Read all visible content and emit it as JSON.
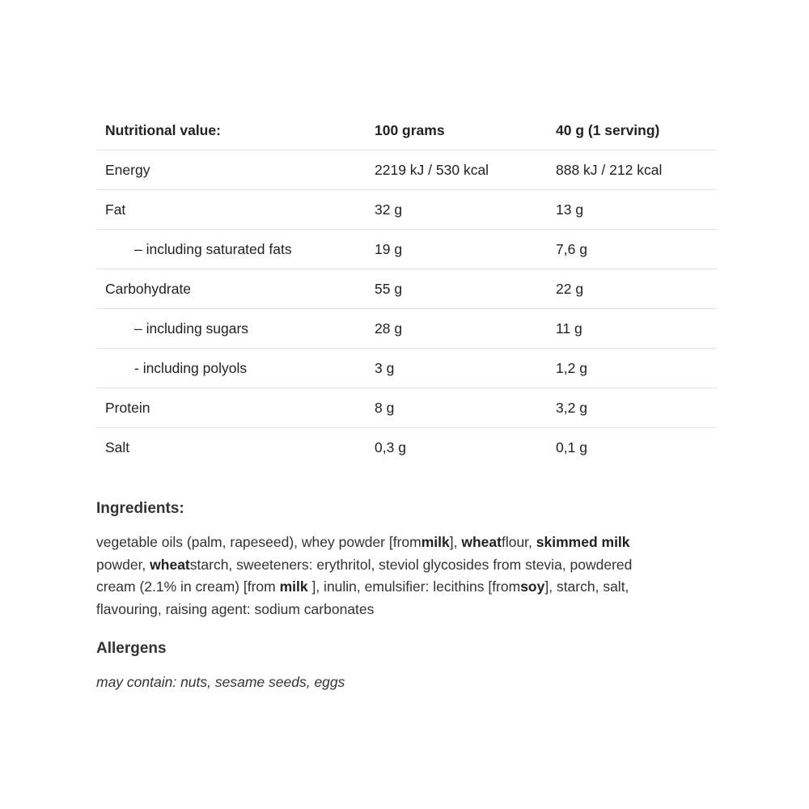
{
  "nutrition": {
    "headers": [
      "Nutritional value:",
      "100 grams",
      "40 g (1 serving)"
    ],
    "rows": [
      {
        "label": "Energy",
        "per100": "2219 kJ / 530 kcal",
        "serving": "888 kJ / 212 kcal",
        "indent": false
      },
      {
        "label": "Fat",
        "per100": "32 g",
        "serving": "13 g",
        "indent": false
      },
      {
        "label": "– including saturated fats",
        "per100": "19 g",
        "serving": "7,6 g",
        "indent": true
      },
      {
        "label": "Carbohydrate",
        "per100": "55 g",
        "serving": "22 g",
        "indent": false
      },
      {
        "label": "– including sugars",
        "per100": "28 g",
        "serving": "11 g",
        "indent": true
      },
      {
        "label": "- including polyols",
        "per100": "3 g",
        "serving": "1,2 g",
        "indent": true
      },
      {
        "label": "Protein",
        "per100": "8 g",
        "serving": "3,2 g",
        "indent": false
      },
      {
        "label": "Salt",
        "per100": "0,3 g",
        "serving": "0,1 g",
        "indent": false
      }
    ]
  },
  "ingredients": {
    "title": "Ingredients:",
    "lines": [
      [
        {
          "t": "vegetable oils (palm, rapeseed), whey powder [from",
          "b": false
        },
        {
          "t": "milk",
          "b": true
        },
        {
          "t": "], ",
          "b": false
        },
        {
          "t": "wheat",
          "b": true
        },
        {
          "t": "flour, ",
          "b": false
        },
        {
          "t": "skimmed milk",
          "b": true
        }
      ],
      [
        {
          "t": "powder, ",
          "b": false
        },
        {
          "t": "wheat",
          "b": true
        },
        {
          "t": "starch, sweeteners: erythritol, steviol glycosides from stevia, powdered",
          "b": false
        }
      ],
      [
        {
          "t": "cream (2.1% in cream) [from ",
          "b": false
        },
        {
          "t": "milk",
          "b": true
        },
        {
          "t": " ], inulin, emulsifier: lecithins [from",
          "b": false
        },
        {
          "t": "soy",
          "b": true
        },
        {
          "t": "], starch, salt,",
          "b": false
        }
      ],
      [
        {
          "t": "flavouring, raising agent: sodium carbonates",
          "b": false
        }
      ]
    ]
  },
  "allergens": {
    "title": "Allergens",
    "text": "may contain: nuts, sesame seeds, eggs"
  }
}
